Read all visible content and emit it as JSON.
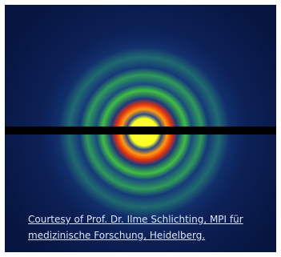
{
  "caption": {
    "lines": [
      "Courtesy of Prof. Dr. Ilme Schlichting, MPI für",
      "medizinische Forschung, Heidelberg."
    ]
  }
}
